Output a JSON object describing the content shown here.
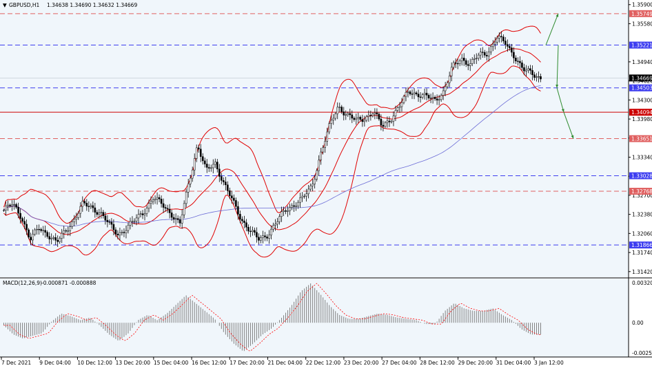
{
  "header": {
    "arrow": "▼",
    "title": "GBPUSD,H1",
    "ohlc": "1.34638 1.34690 1.34632 1.34669"
  },
  "macd_header": {
    "title": "MACD(12,26,9)",
    "values": "-0.000871 -0.000888"
  },
  "colors": {
    "background": "#f0f6fb",
    "panel_bg": "#ffffff",
    "red_level": "#e06060",
    "blue_level": "#3d3df0",
    "solid_level": "#cc0000",
    "bollinger": "#e00000",
    "ma": "#6a6ad6",
    "candle": "#000000",
    "arrow_green": "#2e8b2e",
    "macd_hist": "#808080",
    "macd_signal": "#ff0000",
    "price_tag_bg": "#000000"
  },
  "chart_data": [
    {
      "type": "candlestick",
      "symbol": "GBPUSD",
      "timeframe": "H1",
      "ylim": [
        1.3136,
        1.3592
      ],
      "y_ticks": [
        "1.35900",
        "1.35580",
        "1.34940",
        "1.34620",
        "1.34300",
        "1.33980",
        "1.33660",
        "1.33340",
        "1.33020",
        "1.32700",
        "1.32380",
        "1.32060",
        "1.31740",
        "1.31420"
      ],
      "x_ticks": [
        "7 Dec 2021",
        "9 Dec 04:00",
        "10 Dec 12:00",
        "13 Dec 20:00",
        "15 Dec 04:00",
        "16 Dec 12:00",
        "17 Dec 20:00",
        "21 Dec 04:00",
        "22 Dec 12:00",
        "23 Dec 20:00",
        "27 Dec 04:00",
        "28 Dec 12:00",
        "29 Dec 20:00",
        "31 Dec 04:00",
        "3 Jan 12:00"
      ],
      "close_path": [
        1.3245,
        1.3255,
        1.3235,
        1.3195,
        1.3215,
        1.3205,
        1.319,
        1.321,
        1.323,
        1.3255,
        1.325,
        1.324,
        1.322,
        1.3205,
        1.3215,
        1.323,
        1.3245,
        1.3265,
        1.3255,
        1.324,
        1.322,
        1.329,
        1.3355,
        1.331,
        1.3325,
        1.329,
        1.326,
        1.323,
        1.321,
        1.3195,
        1.3205,
        1.3225,
        1.3245,
        1.3255,
        1.3265,
        1.3285,
        1.334,
        1.3385,
        1.342,
        1.3405,
        1.3395,
        1.34,
        1.341,
        1.3385,
        1.34,
        1.342,
        1.3445,
        1.344,
        1.3435,
        1.343,
        1.3445,
        1.3485,
        1.35,
        1.349,
        1.3505,
        1.351,
        1.3535,
        1.3525,
        1.3505,
        1.348,
        1.3475,
        1.3467
      ],
      "levels": [
        {
          "label": "1.35749",
          "value": 1.35749,
          "style": "dashed",
          "color": "#e06060"
        },
        {
          "label": "1.35221",
          "value": 1.35221,
          "style": "dashed",
          "color": "#3d3df0"
        },
        {
          "label": "1.34503",
          "value": 1.34503,
          "style": "dashed",
          "color": "#3d3df0"
        },
        {
          "label": "1.34094",
          "value": 1.34094,
          "style": "solid",
          "color": "#cc0000"
        },
        {
          "label": "1.33651",
          "value": 1.33651,
          "style": "dashed",
          "color": "#e06060"
        },
        {
          "label": "1.33028",
          "value": 1.33028,
          "style": "dashed",
          "color": "#3d3df0"
        },
        {
          "label": "1.32768",
          "value": 1.32768,
          "style": "dashed",
          "color": "#e06060"
        },
        {
          "label": "1.31866",
          "value": 1.31866,
          "style": "dashed",
          "color": "#3d3df0"
        }
      ],
      "current_price": {
        "label": "1.34669",
        "value": 1.34669
      },
      "projection_arrows": [
        {
          "from": 1.35221,
          "to": 1.35749,
          "direction": "up"
        },
        {
          "from": 1.35221,
          "to": 1.34503,
          "direction": "down"
        },
        {
          "from": 1.34503,
          "to": 1.34094,
          "direction": "down"
        },
        {
          "from": 1.34094,
          "to": 1.33651,
          "direction": "down"
        }
      ],
      "bollinger_bands": true,
      "moving_average": true,
      "grid": false
    },
    {
      "type": "bar",
      "indicator": "MACD(12,26,9)",
      "macd": -0.000871,
      "signal": -0.000888,
      "ylim": [
        -0.002506,
        0.003209
      ],
      "y_ticks": [
        "0.003209",
        "0.00",
        "-0.002506"
      ],
      "histogram_path": [
        -0.0002,
        -0.0009,
        -0.0012,
        -0.001,
        -0.0008,
        0.0001,
        0.0007,
        0.0005,
        0.0002,
        0.0004,
        -0.0002,
        -0.0009,
        -0.0014,
        -0.0008,
        0.0002,
        0.0006,
        0.0002,
        0.0007,
        0.0014,
        0.0021,
        0.0015,
        0.0009,
        0.0003,
        -0.0008,
        -0.0016,
        -0.0022,
        -0.0016,
        -0.0009,
        -0.0004,
        0.0004,
        0.0013,
        0.0024,
        0.003,
        0.0022,
        0.0013,
        0.0006,
        0.0003,
        0.0003,
        0.0005,
        0.0007,
        0.0006,
        0.0004,
        0.0003,
        0.0002,
        -0.0001,
        -0.0001,
        0.0009,
        0.0015,
        0.0011,
        0.0009,
        0.0009,
        0.0011,
        0.0006,
        0.0002,
        -0.0005,
        -0.0009,
        -0.0009
      ]
    }
  ],
  "axis_labels": {
    "price_ticks": [
      "1.35900",
      "1.35580",
      "1.34940",
      "1.34620",
      "1.34300",
      "1.33980",
      "1.33660",
      "1.33340",
      "1.33020",
      "1.32700",
      "1.32380",
      "1.32060",
      "1.31740",
      "1.31420"
    ],
    "time_ticks": [
      "7 Dec 2021",
      "9 Dec 04:00",
      "10 Dec 12:00",
      "13 Dec 20:00",
      "15 Dec 04:00",
      "16 Dec 12:00",
      "17 Dec 20:00",
      "21 Dec 04:00",
      "22 Dec 12:00",
      "23 Dec 20:00",
      "27 Dec 04:00",
      "28 Dec 12:00",
      "29 Dec 20:00",
      "31 Dec 04:00",
      "3 Jan 12:00"
    ]
  }
}
